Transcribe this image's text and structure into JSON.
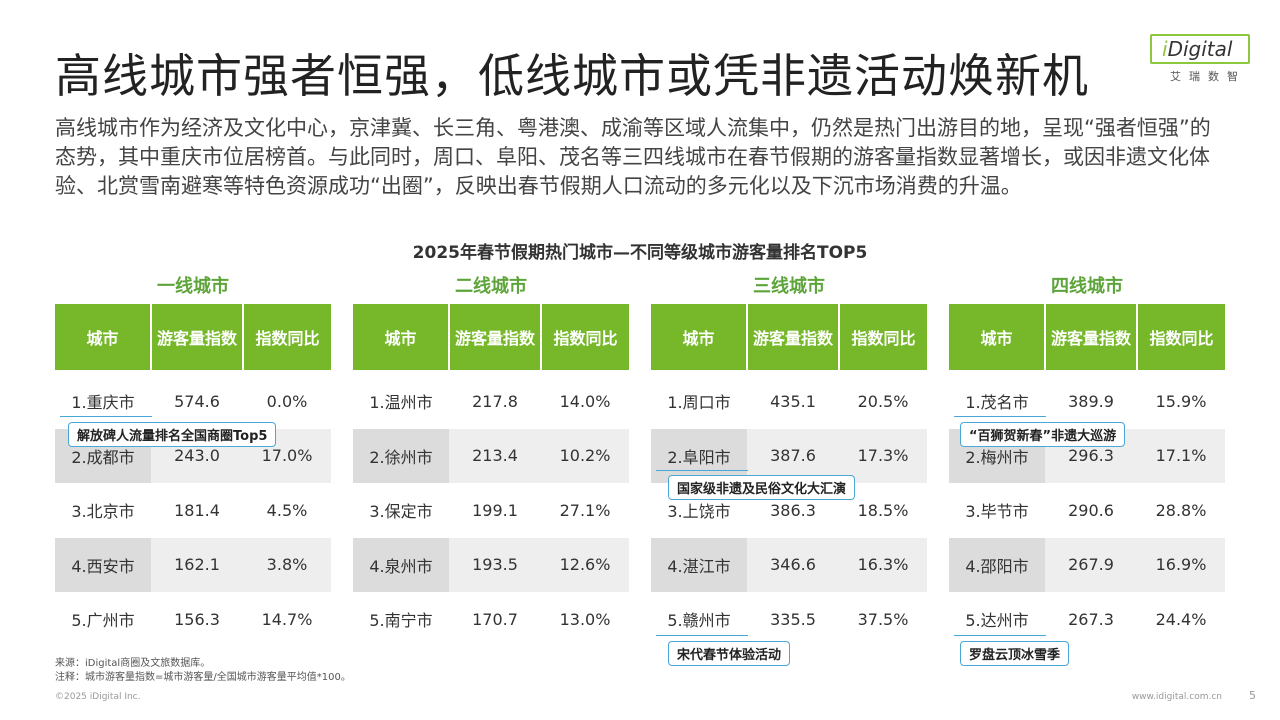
{
  "title": "高线城市强者恒强，低线城市或凭非遗活动焕新机",
  "logo": {
    "main_prefix": "i",
    "main_rest": "Digital",
    "sub": "艾瑞数智"
  },
  "intro": "高线城市作为经济及文化中心，京津冀、长三角、粤港澳、成渝等区域人流集中，仍然是热门出游目的地，呈现“强者恒强”的态势，其中重庆市位居榜首。与此同时，周口、阜阳、茂名等三四线城市在春节假期的游客量指数显著增长，或因非遗文化体验、北赏雪南避寒等特色资源成功“出圈”，反映出春节假期人口流动的多元化以及下沉市场消费的升温。",
  "chart_title": "2025年春节假期热门城市—不同等级城市游客量排名TOP5",
  "headers": {
    "city": "城市",
    "index": "游客量指数",
    "yoy": "指数同比"
  },
  "groups": [
    {
      "title": "一线城市",
      "rows": [
        {
          "city": "1.重庆市",
          "index": "574.6",
          "yoy": "0.0%"
        },
        {
          "city": "2.成都市",
          "index": "243.0",
          "yoy": "17.0%"
        },
        {
          "city": "3.北京市",
          "index": "181.4",
          "yoy": "4.5%"
        },
        {
          "city": "4.西安市",
          "index": "162.1",
          "yoy": "3.8%"
        },
        {
          "city": "5.广州市",
          "index": "156.3",
          "yoy": "14.7%"
        }
      ]
    },
    {
      "title": "二线城市",
      "rows": [
        {
          "city": "1.温州市",
          "index": "217.8",
          "yoy": "14.0%"
        },
        {
          "city": "2.徐州市",
          "index": "213.4",
          "yoy": "10.2%"
        },
        {
          "city": "3.保定市",
          "index": "199.1",
          "yoy": "27.1%"
        },
        {
          "city": "4.泉州市",
          "index": "193.5",
          "yoy": "12.6%"
        },
        {
          "city": "5.南宁市",
          "index": "170.7",
          "yoy": "13.0%"
        }
      ]
    },
    {
      "title": "三线城市",
      "rows": [
        {
          "city": "1.周口市",
          "index": "435.1",
          "yoy": "20.5%"
        },
        {
          "city": "2.阜阳市",
          "index": "387.6",
          "yoy": "17.3%"
        },
        {
          "city": "3.上饶市",
          "index": "386.3",
          "yoy": "18.5%"
        },
        {
          "city": "4.湛江市",
          "index": "346.6",
          "yoy": "16.3%"
        },
        {
          "city": "5.赣州市",
          "index": "335.5",
          "yoy": "37.5%"
        }
      ]
    },
    {
      "title": "四线城市",
      "rows": [
        {
          "city": "1.茂名市",
          "index": "389.9",
          "yoy": "15.9%"
        },
        {
          "city": "2.梅州市",
          "index": "296.3",
          "yoy": "17.1%"
        },
        {
          "city": "3.毕节市",
          "index": "290.6",
          "yoy": "28.8%"
        },
        {
          "city": "4.邵阳市",
          "index": "267.9",
          "yoy": "16.9%"
        },
        {
          "city": "5.达州市",
          "index": "267.3",
          "yoy": "24.4%"
        }
      ]
    }
  ],
  "callouts": {
    "chongqing": "解放碑人流量排名全国商圈Top5",
    "fuyang": "国家级非遗及民俗文化大汇演",
    "ganzhou": "宋代春节体验活动",
    "maoming": "“百狮贺新春”非遗大巡游",
    "dazhou": "罗盘云顶冰雪季"
  },
  "notes": {
    "source": "来源：iDigital商圈及文旅数据库。",
    "note": "注释：城市游客量指数=城市游客量/全国城市游客量平均值*100。"
  },
  "footer": {
    "copyright": "©2025 iDigital Inc.",
    "url": "www.idigital.com.cn",
    "page": "5"
  }
}
